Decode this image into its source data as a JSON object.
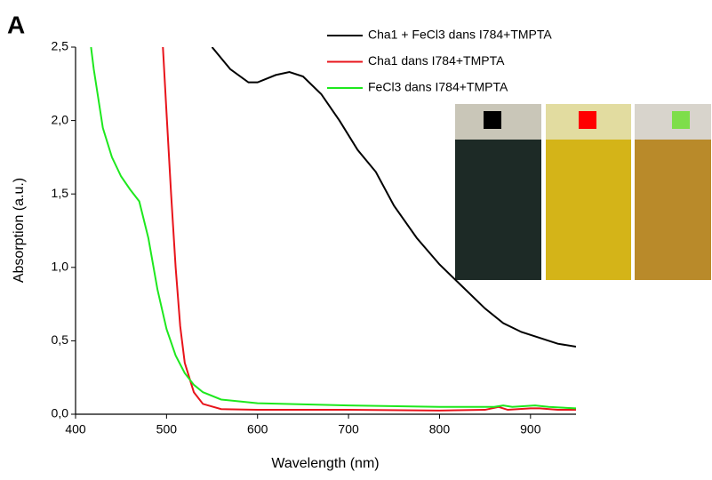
{
  "panel_label": "A",
  "chart_data": {
    "type": "line",
    "xlabel": "Wavelength (nm)",
    "ylabel": "Absorption (a.u.)",
    "xlim": [
      400,
      950
    ],
    "xticks": [
      400,
      500,
      600,
      700,
      800,
      900
    ],
    "ylim": [
      0,
      2.5
    ],
    "yticks": [
      {
        "value": 0,
        "label": "0,0"
      },
      {
        "value": 0.5,
        "label": "0,5"
      },
      {
        "value": 1,
        "label": "1,0"
      },
      {
        "value": 1.5,
        "label": "1,5"
      },
      {
        "value": 2,
        "label": "2,0"
      },
      {
        "value": 2.5,
        "label": "2,5"
      }
    ],
    "series": [
      {
        "name": "Cha1 + FeCl3 dans I784+TMPTA",
        "color": "#000000",
        "x": [
          550,
          570,
          590,
          600,
          620,
          635,
          650,
          670,
          690,
          710,
          730,
          750,
          775,
          800,
          825,
          850,
          870,
          890,
          910,
          930,
          950
        ],
        "values": [
          2.5,
          2.35,
          2.26,
          2.26,
          2.31,
          2.33,
          2.3,
          2.18,
          2.0,
          1.8,
          1.65,
          1.42,
          1.2,
          1.02,
          0.87,
          0.72,
          0.62,
          0.56,
          0.52,
          0.48,
          0.46
        ]
      },
      {
        "name": "Cha1 dans I784+TMPTA",
        "color": "#e8141b",
        "x": [
          496,
          500,
          505,
          510,
          515,
          520,
          530,
          540,
          560,
          600,
          700,
          800,
          850,
          865,
          875,
          900,
          910,
          930,
          950
        ],
        "values": [
          2.5,
          2.05,
          1.5,
          1.0,
          0.6,
          0.35,
          0.15,
          0.07,
          0.035,
          0.03,
          0.03,
          0.025,
          0.03,
          0.05,
          0.03,
          0.04,
          0.04,
          0.03,
          0.03
        ]
      },
      {
        "name": "FeCl3 dans I784+TMPTA",
        "color": "#1ee81e",
        "x": [
          417,
          420,
          430,
          440,
          450,
          460,
          470,
          480,
          490,
          500,
          510,
          520,
          530,
          540,
          560,
          600,
          700,
          800,
          860,
          870,
          880,
          905,
          920,
          950
        ],
        "values": [
          2.5,
          2.35,
          1.95,
          1.75,
          1.62,
          1.53,
          1.45,
          1.2,
          0.85,
          0.58,
          0.4,
          0.28,
          0.2,
          0.15,
          0.1,
          0.075,
          0.06,
          0.05,
          0.05,
          0.06,
          0.05,
          0.06,
          0.05,
          0.04
        ]
      }
    ]
  }
}
